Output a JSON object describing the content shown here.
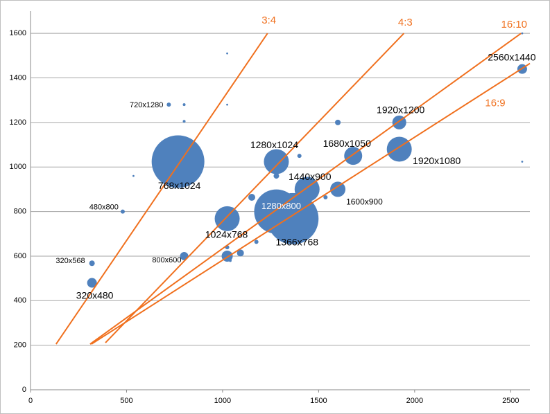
{
  "chart_data": {
    "type": "bubble",
    "color": "#4f81bd",
    "line_color": "#f0701e",
    "grid": true,
    "xlim": [
      0,
      2600
    ],
    "ylim": [
      0,
      1700
    ],
    "xticks": [
      0,
      500,
      1000,
      1500,
      2000,
      2500
    ],
    "yticks": [
      0,
      200,
      400,
      600,
      800,
      1000,
      1200,
      1400,
      1600
    ],
    "x": [
      320,
      320,
      480,
      720,
      768,
      800,
      1024,
      1280,
      1280,
      1366,
      1440,
      1600,
      1680,
      1920,
      1920,
      2560,
      1024,
      1600,
      1152,
      1093,
      800,
      800,
      1024,
      1024,
      536,
      1280,
      1280,
      1050,
      1176,
      1400,
      1536,
      2560,
      2560,
      1024,
      1040
    ],
    "y": [
      480,
      568,
      800,
      1280,
      1024,
      600,
      768,
      800,
      1024,
      768,
      900,
      900,
      1050,
      1080,
      1200,
      1440,
      600,
      1200,
      864,
      614,
      1280,
      1205,
      1280,
      1510,
      960,
      960,
      720,
      810,
      664,
      1050,
      864,
      1600,
      1024,
      640,
      580
    ],
    "sizes": [
      49,
      16,
      9,
      9,
      1444,
      36,
      324,
      1024,
      324,
      1369,
      324,
      121,
      169,
      324,
      100,
      49,
      64,
      16,
      25,
      25,
      4,
      4,
      2,
      2,
      2,
      16,
      9,
      9,
      9,
      9,
      9,
      2,
      2,
      9,
      4
    ],
    "labels": [
      "320x480",
      "320x568",
      "480x800",
      "720x1280",
      "768x1024",
      "800x600",
      "1024x768",
      "1280x800",
      "1280x1024",
      "1366x768",
      "1440x900",
      "1600x900",
      "1680x1050",
      "1920x1080",
      "1920x1200",
      "2560x1440",
      null,
      null,
      null,
      null,
      null,
      null,
      null,
      null,
      null,
      null,
      null,
      null,
      null,
      null,
      null,
      null,
      null,
      null,
      null
    ],
    "lines": [
      {
        "name": "3:4",
        "x": [
          133,
          1234
        ],
        "y": [
          205,
          1600
        ]
      },
      {
        "name": "4:3",
        "x": [
          390,
          1944
        ],
        "y": [
          211,
          1600
        ]
      },
      {
        "name": "16:10",
        "x": [
          310,
          2554
        ],
        "y": [
          205,
          1600
        ]
      },
      {
        "name": "16:9",
        "x": [
          317,
          2600
        ],
        "y": [
          205,
          1465
        ]
      }
    ]
  }
}
